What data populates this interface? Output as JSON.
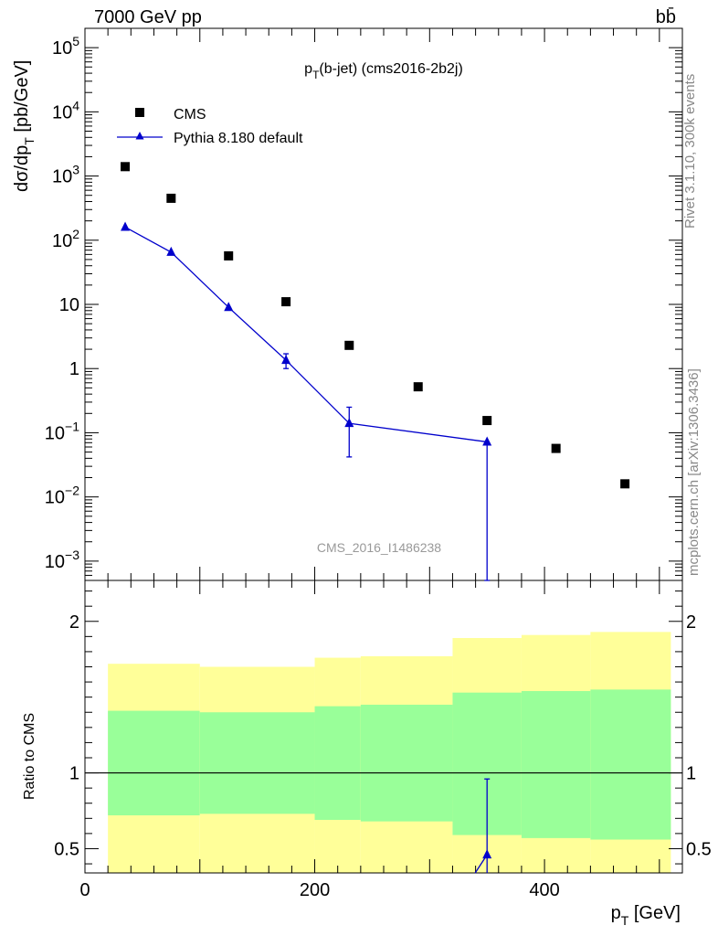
{
  "header": {
    "energy_label": "7000 GeV pp",
    "process_label": "bb̄"
  },
  "side_labels": {
    "rivet": "Rivet 3.1.10,  300k events",
    "mcplots": "mcplots.cern.ch [arXiv:1306.3436]"
  },
  "watermark": "CMS_2016_I1486238",
  "chart_data": [
    {
      "type": "scatter",
      "panel": "main",
      "title": "p_T(b-jet) (cms2016-2b2j)",
      "title_parts": {
        "main": "p",
        "sub": "T",
        "rest": "(b-jet) (cms2016-2b2j)"
      },
      "ylabel": "dσ/dp_T [pb/GeV]",
      "ylabel_parts": {
        "main": "dσ/dp",
        "sub": "T",
        "rest": " [pb/GeV]"
      },
      "yscale": "log",
      "xlim": [
        0,
        520
      ],
      "ylim": [
        0.0005,
        200000
      ],
      "y_ticks": [
        {
          "value": 100000,
          "label": "10^5"
        },
        {
          "value": 10000,
          "label": "10^4"
        },
        {
          "value": 1000,
          "label": "10^3"
        },
        {
          "value": 100,
          "label": "10^2"
        },
        {
          "value": 10,
          "label": "10"
        },
        {
          "value": 1,
          "label": "1"
        },
        {
          "value": 0.1,
          "label": "10^-1"
        },
        {
          "value": 0.01,
          "label": "10^-2"
        },
        {
          "value": 0.001,
          "label": "10^-3"
        }
      ],
      "legend_position": "top-left",
      "series": [
        {
          "name": "CMS",
          "marker": "square",
          "color": "#000000",
          "x": [
            35,
            75,
            125,
            175,
            230,
            290,
            350,
            410,
            470
          ],
          "y": [
            1400,
            450,
            57,
            11,
            2.3,
            0.52,
            0.155,
            0.057,
            0.016
          ]
        },
        {
          "name": "Pythia 8.180 default",
          "marker": "triangle",
          "color": "#0000cc",
          "x": [
            35,
            75,
            125,
            175,
            230,
            350
          ],
          "y": [
            160,
            65,
            9,
            1.35,
            0.14,
            0.072
          ],
          "y_err_low": [
            0,
            0,
            0,
            0.35,
            0.098,
            0.0715
          ],
          "y_err_high": [
            0,
            0,
            0,
            0.35,
            0.11,
            0
          ]
        }
      ]
    },
    {
      "type": "area",
      "panel": "ratio",
      "ylabel": "Ratio to CMS",
      "xlabel": "p_T [GeV]",
      "xlabel_parts": {
        "main": "p",
        "sub": "T",
        "rest": " [GeV]"
      },
      "xlim": [
        0,
        520
      ],
      "ylim": [
        0.34,
        2.27
      ],
      "x_ticks": [
        0,
        200,
        400
      ],
      "y_ticks": [
        {
          "value": 2,
          "label": "2"
        },
        {
          "value": 1,
          "label": "1"
        },
        {
          "value": 0.5,
          "label": "0.5"
        }
      ],
      "reference_line": 1,
      "band_colors": {
        "outer": "#ffff99",
        "inner": "#99ff99"
      },
      "bins": [
        {
          "x_lo": 20,
          "x_hi": 100,
          "outer_lo": 0.72,
          "outer_hi": 1.72,
          "inner_lo": 0.72,
          "inner_hi": 1.41
        },
        {
          "x_lo": 100,
          "x_hi": 200,
          "outer_lo": 0.73,
          "outer_hi": 1.7,
          "inner_lo": 0.73,
          "inner_hi": 1.4
        },
        {
          "x_lo": 200,
          "x_hi": 240,
          "outer_lo": 0.69,
          "outer_hi": 1.76,
          "inner_lo": 0.69,
          "inner_hi": 1.44
        },
        {
          "x_lo": 240,
          "x_hi": 320,
          "outer_lo": 0.68,
          "outer_hi": 1.77,
          "inner_lo": 0.68,
          "inner_hi": 1.45
        },
        {
          "x_lo": 320,
          "x_hi": 380,
          "outer_lo": 0.59,
          "outer_hi": 1.89,
          "inner_lo": 0.59,
          "inner_hi": 1.53
        },
        {
          "x_lo": 380,
          "x_hi": 440,
          "outer_lo": 0.57,
          "outer_hi": 1.91,
          "inner_lo": 0.57,
          "inner_hi": 1.54
        },
        {
          "x_lo": 440,
          "x_hi": 510,
          "outer_lo": 0.56,
          "outer_hi": 1.93,
          "inner_lo": 0.56,
          "inner_hi": 1.55
        }
      ],
      "series": [
        {
          "name": "Pythia 8.180 default",
          "marker": "triangle",
          "color": "#0000cc",
          "x": [
            350
          ],
          "y": [
            0.46
          ],
          "y_err_low": [
            0.45
          ],
          "y_err_high": [
            0.5
          ]
        }
      ]
    }
  ]
}
